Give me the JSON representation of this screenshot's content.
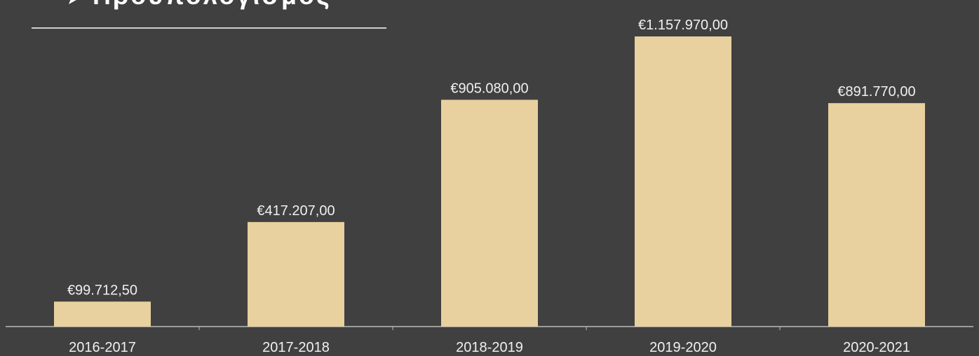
{
  "chart_data": {
    "type": "bar",
    "title": "Προϋπολογισμός",
    "categories": [
      "2016-2017",
      "2017-2018",
      "2018-2019",
      "2019-2020",
      "2020-2021"
    ],
    "values": [
      99712.5,
      417207,
      905080,
      1157970,
      891770
    ],
    "value_labels": [
      "€99.712,50",
      "€417.207,00",
      "€905.080,00",
      "€1.157.970,00",
      "€891.770,00"
    ],
    "color": "#e8d19e"
  }
}
